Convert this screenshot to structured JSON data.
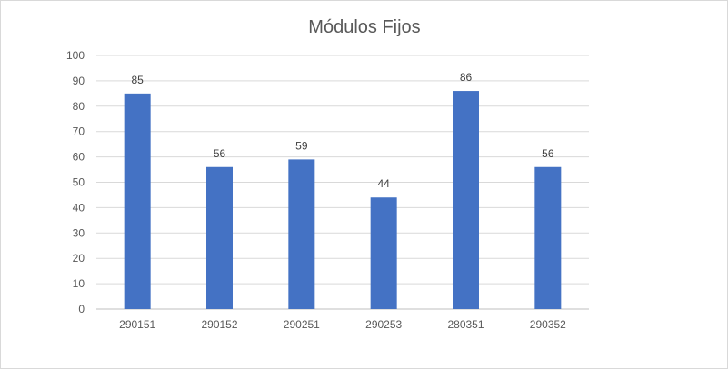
{
  "chart_data": {
    "type": "bar",
    "title": "Módulos Fijos",
    "xlabel": "",
    "ylabel": "",
    "categories": [
      "290151",
      "290152",
      "290251",
      "290253",
      "280351",
      "290352"
    ],
    "values": [
      85,
      56,
      59,
      44,
      86,
      56
    ],
    "ylim": [
      0,
      100
    ],
    "yticks": [
      0,
      10,
      20,
      30,
      40,
      50,
      60,
      70,
      80,
      90,
      100
    ],
    "grid": true,
    "legend": "none",
    "bar_color": "#4472c4",
    "data_labels": true
  }
}
